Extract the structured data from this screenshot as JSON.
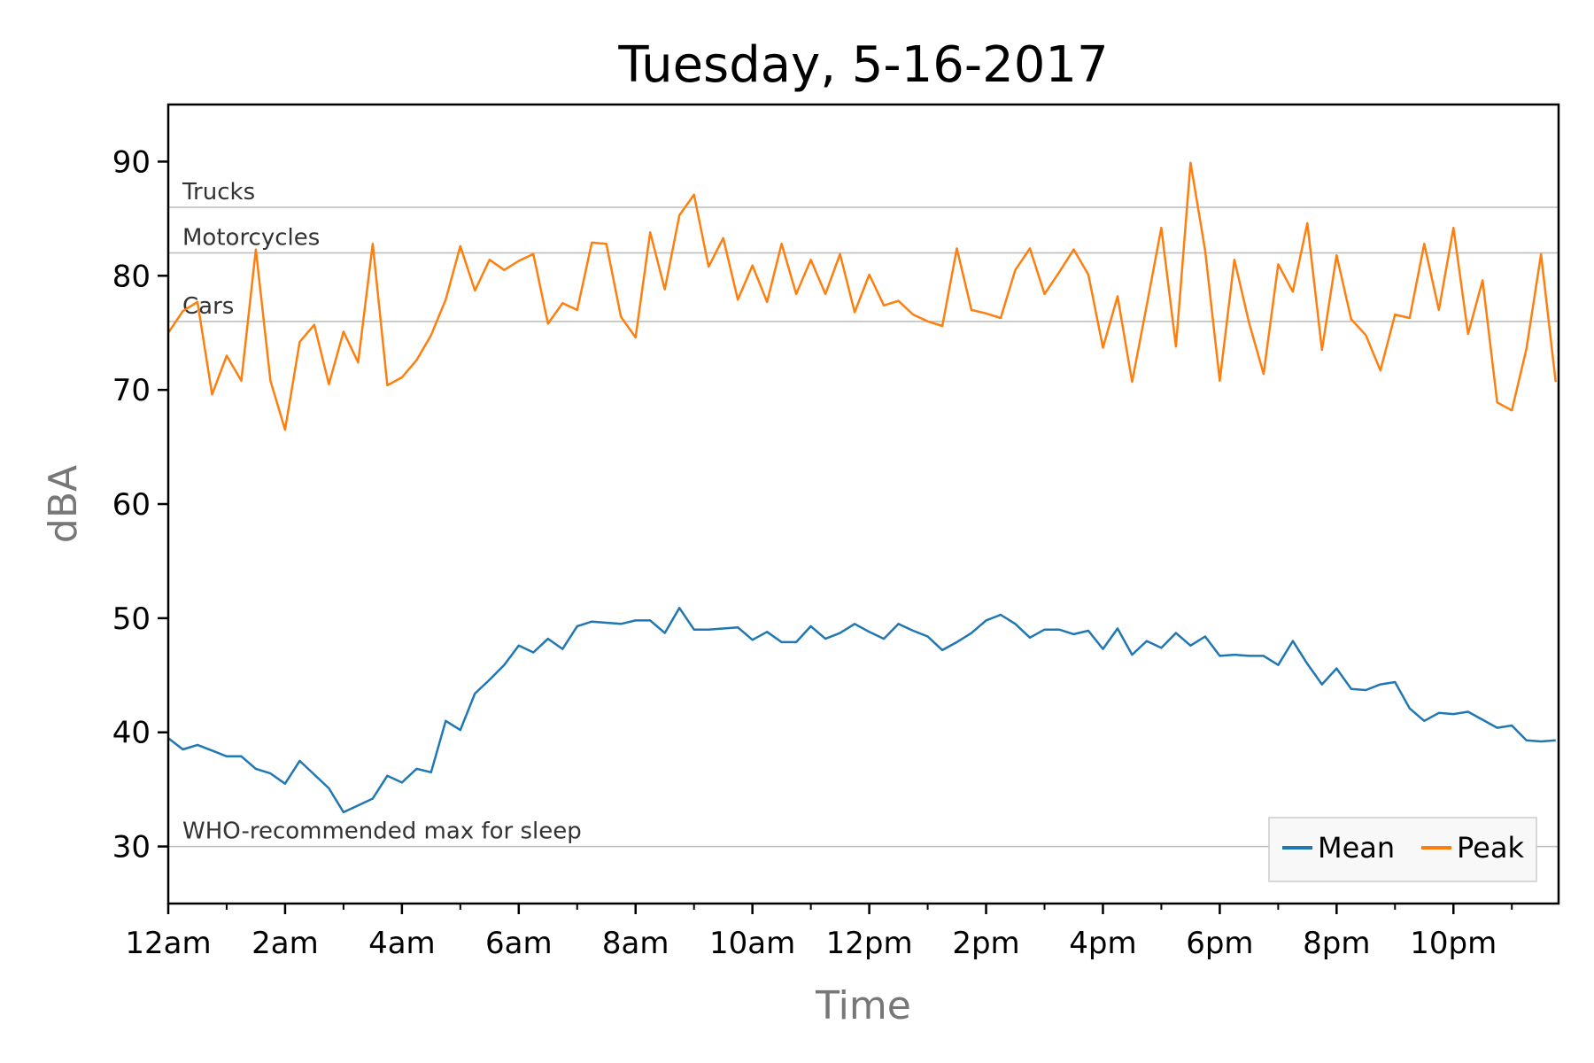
{
  "chart_data": {
    "type": "line",
    "title": "Tuesday, 5-16-2017",
    "xlabel": "Time",
    "ylabel": "dBA",
    "ylim": [
      25,
      95
    ],
    "xlim": [
      0,
      23.8
    ],
    "yticks": [
      30,
      40,
      50,
      60,
      70,
      80,
      90
    ],
    "xticks": [
      {
        "value": 0,
        "label": "12am"
      },
      {
        "value": 2,
        "label": "2am"
      },
      {
        "value": 4,
        "label": "4am"
      },
      {
        "value": 6,
        "label": "6am"
      },
      {
        "value": 8,
        "label": "8am"
      },
      {
        "value": 10,
        "label": "10am"
      },
      {
        "value": 12,
        "label": "12pm"
      },
      {
        "value": 14,
        "label": "2pm"
      },
      {
        "value": 16,
        "label": "4pm"
      },
      {
        "value": 18,
        "label": "6pm"
      },
      {
        "value": 20,
        "label": "8pm"
      },
      {
        "value": 22,
        "label": "10pm"
      }
    ],
    "grid": false,
    "legend_position": "bottom-right",
    "reference_lines": [
      {
        "label": "Trucks",
        "value": 86
      },
      {
        "label": "Motorcycles",
        "value": 82
      },
      {
        "label": "Cars",
        "value": 76
      },
      {
        "label": "WHO-recommended max for sleep",
        "value": 30
      }
    ],
    "series": [
      {
        "name": "Mean",
        "color": "#1f77b4",
        "x": [
          0,
          0.25,
          0.5,
          0.75,
          1,
          1.25,
          1.5,
          1.75,
          2,
          2.25,
          2.5,
          2.75,
          3,
          3.25,
          3.5,
          3.75,
          4,
          4.25,
          4.5,
          4.75,
          5,
          5.25,
          5.5,
          5.75,
          6,
          6.25,
          6.5,
          6.75,
          7,
          7.25,
          7.5,
          7.75,
          8,
          8.25,
          8.5,
          8.75,
          9,
          9.25,
          9.5,
          9.75,
          10,
          10.25,
          10.5,
          10.75,
          11,
          11.25,
          11.5,
          11.75,
          12,
          12.25,
          12.5,
          12.75,
          13,
          13.25,
          13.5,
          13.75,
          14,
          14.25,
          14.5,
          14.75,
          15,
          15.25,
          15.5,
          15.75,
          16,
          16.25,
          16.5,
          16.75,
          17,
          17.25,
          17.5,
          17.75,
          18,
          18.25,
          18.5,
          18.75,
          19,
          19.25,
          19.5,
          19.75,
          20,
          20.25,
          20.5,
          20.75,
          21,
          21.25,
          21.5,
          21.75,
          22,
          22.25,
          22.5,
          22.75,
          23,
          23.25,
          23.5,
          23.75
        ],
        "values": [
          39.5,
          38.5,
          38.9,
          38.4,
          37.9,
          37.9,
          36.8,
          36.4,
          35.5,
          37.5,
          36.3,
          35.1,
          33.0,
          33.6,
          34.2,
          36.2,
          35.6,
          36.8,
          36.5,
          41.0,
          40.2,
          43.4,
          44.6,
          45.9,
          47.6,
          47.0,
          48.2,
          47.3,
          49.3,
          49.7,
          49.6,
          49.5,
          49.8,
          49.8,
          48.7,
          50.9,
          49.0,
          49.0,
          49.1,
          49.2,
          48.1,
          48.8,
          47.9,
          47.9,
          49.3,
          48.2,
          48.7,
          49.5,
          48.8,
          48.2,
          49.5,
          48.9,
          48.4,
          47.2,
          47.9,
          48.7,
          49.8,
          50.3,
          49.5,
          48.3,
          49.0,
          49.0,
          48.6,
          48.9,
          47.3,
          49.1,
          46.8,
          48.0,
          47.4,
          48.7,
          47.6,
          48.4,
          46.7,
          46.8,
          46.7,
          46.7,
          45.9,
          48.0,
          46.0,
          44.2,
          45.6,
          43.8,
          43.7,
          44.2,
          44.4,
          42.1,
          41.0,
          41.7,
          41.6,
          41.8,
          41.1,
          40.4,
          40.6,
          39.3,
          39.2,
          39.3
        ]
      },
      {
        "name": "Peak",
        "color": "#ff7f0e",
        "x": [
          0,
          0.25,
          0.5,
          0.75,
          1,
          1.25,
          1.5,
          1.75,
          2,
          2.25,
          2.5,
          2.75,
          3,
          3.25,
          3.5,
          3.75,
          4,
          4.25,
          4.5,
          4.75,
          5,
          5.25,
          5.5,
          5.75,
          6,
          6.25,
          6.5,
          6.75,
          7,
          7.25,
          7.5,
          7.75,
          8,
          8.25,
          8.5,
          8.75,
          9,
          9.25,
          9.5,
          9.75,
          10,
          10.25,
          10.5,
          10.75,
          11,
          11.25,
          11.5,
          11.75,
          12,
          12.25,
          12.5,
          12.75,
          13,
          13.25,
          13.5,
          13.75,
          14,
          14.25,
          14.5,
          14.75,
          15,
          15.25,
          15.5,
          15.75,
          16,
          16.25,
          16.5,
          16.75,
          17,
          17.25,
          17.5,
          17.75,
          18,
          18.25,
          18.5,
          18.75,
          19,
          19.25,
          19.5,
          19.75,
          20,
          20.25,
          20.5,
          20.75,
          21,
          21.25,
          21.5,
          21.75,
          22,
          22.25,
          22.5,
          22.75,
          23,
          23.25,
          23.5,
          23.75
        ],
        "values": [
          75.0,
          76.9,
          77.7,
          69.6,
          73.0,
          70.8,
          82.3,
          70.8,
          66.5,
          74.2,
          75.7,
          70.5,
          75.1,
          72.4,
          82.8,
          70.4,
          71.1,
          72.6,
          74.8,
          77.9,
          82.6,
          78.7,
          81.4,
          80.5,
          81.3,
          81.9,
          75.8,
          77.6,
          77.0,
          82.9,
          82.8,
          76.4,
          74.6,
          83.8,
          78.8,
          85.3,
          87.1,
          80.8,
          83.3,
          77.9,
          80.9,
          77.7,
          82.8,
          78.4,
          81.4,
          78.4,
          81.9,
          76.8,
          80.1,
          77.4,
          77.8,
          76.6,
          76.0,
          75.6,
          82.4,
          77.0,
          76.7,
          76.3,
          80.5,
          82.4,
          78.4,
          80.3,
          82.3,
          80.1,
          73.7,
          78.2,
          70.7,
          77.4,
          84.2,
          73.8,
          89.9,
          82.2,
          70.8,
          81.4,
          75.9,
          71.4,
          81.0,
          78.6,
          84.6,
          73.5,
          81.8,
          76.2,
          74.8,
          71.7,
          76.6,
          76.3,
          82.8,
          77.0,
          84.2,
          74.9,
          79.6,
          68.9,
          68.2,
          73.6,
          81.9,
          70.7
        ]
      }
    ]
  }
}
